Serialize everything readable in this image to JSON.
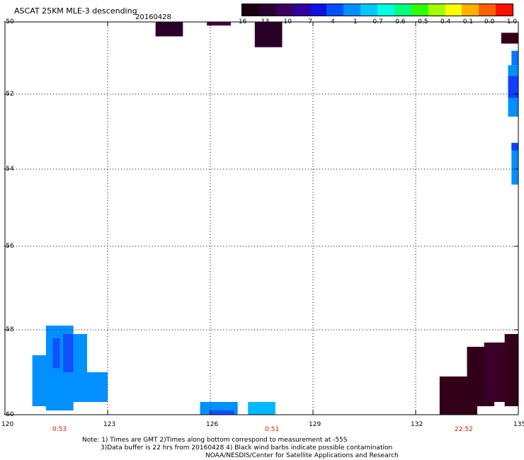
{
  "header": {
    "title": "ASCAT 25KM MLE-3 descending",
    "date": "20160428"
  },
  "colorbar": {
    "labels": [
      "-16",
      "-13",
      "-10",
      "-7",
      "-4",
      "-1",
      "-0.7",
      "-0.6",
      "-0.5",
      "-0.4",
      "-0.1",
      "0.0",
      "1.0"
    ],
    "colors": [
      "#1a0010",
      "#2a0030",
      "#3a0060",
      "#3000a0",
      "#1010e0",
      "#0050ff",
      "#0090ff",
      "#00c8ff",
      "#00ffe0",
      "#00ff80",
      "#30ff00",
      "#a0ff00",
      "#ffff00",
      "#ffb000",
      "#ff6000",
      "#ff1000"
    ]
  },
  "axes": {
    "lon_ticks": [
      "120",
      "123",
      "126",
      "129",
      "132",
      "135"
    ],
    "lat_ticks": [
      "-50",
      "-52",
      "-54",
      "-56",
      "-58",
      "-60"
    ]
  },
  "times": [
    "0:53",
    "0:51",
    "22:52"
  ],
  "notes": {
    "line1": "Note: 1) Times are GMT 2)Times along bottom correspond to measurement at -55S",
    "line2": "3)Data buffer is 22 hrs from 20160428 4) Black wind barbs indicate possible contamination",
    "line3": "NOAA/NESDIS/Center for Satellite Applications and Research"
  },
  "map_data": {
    "lon_range": [
      120,
      135
    ],
    "lat_range": [
      -60,
      -50
    ],
    "cells": [
      {
        "lon0": 124.4,
        "lon1": 125.2,
        "lat0": -50.4,
        "lat1": -50.0,
        "color": "#2a0028"
      },
      {
        "lon0": 125.9,
        "lon1": 126.6,
        "lat0": -50.1,
        "lat1": -50.0,
        "color": "#4a0040"
      },
      {
        "lon0": 127.3,
        "lon1": 128.1,
        "lat0": -50.7,
        "lat1": -50.0,
        "color": "#2a0028"
      },
      {
        "lon0": 134.5,
        "lon1": 135.0,
        "lat0": -50.6,
        "lat1": -50.3,
        "color": "#33001a"
      },
      {
        "lon0": 134.8,
        "lon1": 135.0,
        "lat0": -51.2,
        "lat1": -50.8,
        "color": "#0078ff"
      },
      {
        "lon0": 134.7,
        "lon1": 135.0,
        "lat0": -52.6,
        "lat1": -51.2,
        "color": "#0090ff"
      },
      {
        "lon0": 134.7,
        "lon1": 135.0,
        "lat0": -52.1,
        "lat1": -51.5,
        "color": "#1040ff"
      },
      {
        "lon0": 134.8,
        "lon1": 135.0,
        "lat0": -54.4,
        "lat1": -53.3,
        "color": "#0090ff"
      },
      {
        "lon0": 134.8,
        "lon1": 135.0,
        "lat0": -53.5,
        "lat1": -53.3,
        "color": "#1040ff"
      },
      {
        "lon0": 121.2,
        "lon1": 122.0,
        "lat0": -59.9,
        "lat1": -57.9,
        "color": "#0090ff"
      },
      {
        "lon0": 122.0,
        "lon1": 122.4,
        "lat0": -59.5,
        "lat1": -58.1,
        "color": "#0090ff"
      },
      {
        "lon0": 120.8,
        "lon1": 121.9,
        "lat0": -59.8,
        "lat1": -58.6,
        "color": "#0090ff"
      },
      {
        "lon0": 121.9,
        "lon1": 123.0,
        "lat0": -59.7,
        "lat1": -59.0,
        "color": "#0090ff"
      },
      {
        "lon0": 121.4,
        "lon1": 121.6,
        "lat0": -58.9,
        "lat1": -58.2,
        "color": "#1050ff"
      },
      {
        "lon0": 121.7,
        "lon1": 122.0,
        "lat0": -59.0,
        "lat1": -58.1,
        "color": "#1050ff"
      },
      {
        "lon0": 125.7,
        "lon1": 126.8,
        "lat0": -60.0,
        "lat1": -59.7,
        "color": "#0090ff"
      },
      {
        "lon0": 126.0,
        "lon1": 126.7,
        "lat0": -60.0,
        "lat1": -59.9,
        "color": "#1050ff"
      },
      {
        "lon0": 127.1,
        "lon1": 127.9,
        "lat0": -60.0,
        "lat1": -59.7,
        "color": "#00b8ff"
      },
      {
        "lon0": 132.7,
        "lon1": 133.8,
        "lat0": -60.0,
        "lat1": -59.1,
        "color": "#33001a"
      },
      {
        "lon0": 133.5,
        "lon1": 134.3,
        "lat0": -59.8,
        "lat1": -58.4,
        "color": "#33001a"
      },
      {
        "lon0": 134.0,
        "lon1": 135.0,
        "lat0": -59.7,
        "lat1": -58.3,
        "color": "#3a0028"
      },
      {
        "lon0": 134.6,
        "lon1": 135.0,
        "lat0": -59.8,
        "lat1": -58.1,
        "color": "#33001a"
      }
    ]
  }
}
